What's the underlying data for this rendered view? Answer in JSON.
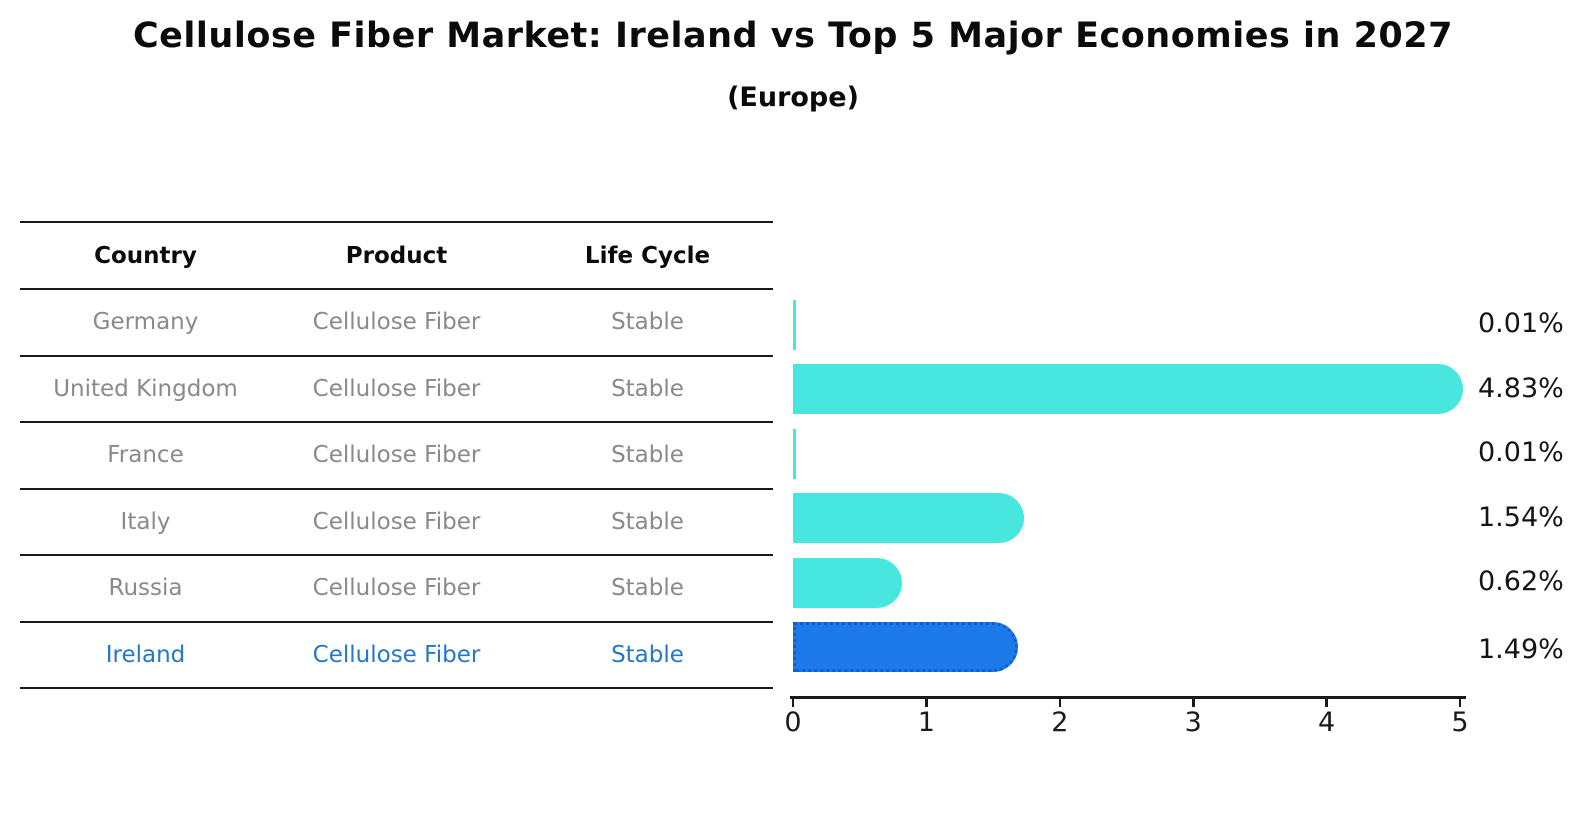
{
  "title": "Cellulose Fiber Market: Ireland vs Top 5 Major Economies in 2027",
  "subtitle": "(Europe)",
  "table": {
    "headers": [
      "Country",
      "Product",
      "Life Cycle"
    ],
    "rows": [
      {
        "country": "Germany",
        "product": "Cellulose Fiber",
        "life_cycle": "Stable",
        "highlighted": false
      },
      {
        "country": "United Kingdom",
        "product": "Cellulose Fiber",
        "life_cycle": "Stable",
        "highlighted": false
      },
      {
        "country": "France",
        "product": "Cellulose Fiber",
        "life_cycle": "Stable",
        "highlighted": false
      },
      {
        "country": "Italy",
        "product": "Cellulose Fiber",
        "life_cycle": "Stable",
        "highlighted": false
      },
      {
        "country": "Russia",
        "product": "Cellulose Fiber",
        "life_cycle": "Stable",
        "highlighted": false
      },
      {
        "country": "Ireland",
        "product": "Cellulose Fiber",
        "life_cycle": "Stable",
        "highlighted": true
      }
    ]
  },
  "chart_data": {
    "type": "bar",
    "orientation": "horizontal",
    "categories": [
      "Germany",
      "United Kingdom",
      "France",
      "Italy",
      "Russia",
      "Ireland"
    ],
    "values": [
      0.01,
      4.83,
      0.01,
      1.54,
      0.62,
      1.49
    ],
    "labels": [
      "0.01%",
      "4.83%",
      "0.01%",
      "1.54%",
      "0.62%",
      "1.49%"
    ],
    "title": "Cellulose Fiber Market: Ireland vs Top 5 Major Economies in 2027 (Europe)",
    "xlabel": "",
    "ylabel": "",
    "xlim": [
      0,
      5
    ],
    "x_ticks": [
      0,
      1,
      2,
      3,
      4,
      5
    ],
    "grid": false,
    "legend": false,
    "bar_color": "#47e6df",
    "highlight_color": "#1e79e8",
    "highlight_index": 5
  },
  "colors": {
    "background": "#ffffff",
    "bar_cyan": "#47e6df",
    "bar_blue": "#1e79e8",
    "bar_blue_border": "#0e5fce",
    "row_text_gray": "#8a8a8a",
    "highlight_text_blue": "#2577c8",
    "line_black": "#1a1a1a"
  }
}
